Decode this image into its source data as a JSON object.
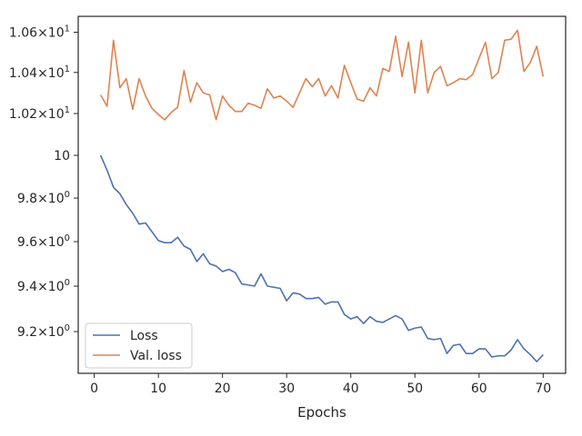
{
  "chart_data": {
    "type": "line",
    "title": "",
    "xlabel": "Epochs",
    "ylabel": "",
    "xlim": [
      -2.5,
      73.5
    ],
    "ylim": [
      9.02,
      10.68
    ],
    "yscale": "log",
    "grid": false,
    "legend": "lower-left",
    "x_ticks": [
      0,
      10,
      20,
      30,
      40,
      50,
      60,
      70
    ],
    "x_tick_labels": [
      "0",
      "10",
      "20",
      "30",
      "40",
      "50",
      "60",
      "70"
    ],
    "y_ticks": [
      9.2,
      9.4,
      9.6,
      9.8,
      10,
      10.2,
      10.4,
      10.6
    ],
    "y_tick_labels": [
      {
        "base": "9.2×10",
        "exp": "0"
      },
      {
        "base": "9.4×10",
        "exp": "0"
      },
      {
        "base": "9.6×10",
        "exp": "0"
      },
      {
        "base": "9.8×10",
        "exp": "0"
      },
      {
        "base": "10",
        "exp": ""
      },
      {
        "base": "1.02×10",
        "exp": "1"
      },
      {
        "base": "1.04×10",
        "exp": "1"
      },
      {
        "base": "1.06×10",
        "exp": "1"
      }
    ],
    "x": [
      1,
      2,
      3,
      4,
      5,
      6,
      7,
      8,
      9,
      10,
      11,
      12,
      13,
      14,
      15,
      16,
      17,
      18,
      19,
      20,
      21,
      22,
      23,
      24,
      25,
      26,
      27,
      28,
      29,
      30,
      31,
      32,
      33,
      34,
      35,
      36,
      37,
      38,
      39,
      40,
      41,
      42,
      43,
      44,
      45,
      46,
      47,
      48,
      49,
      50,
      51,
      52,
      53,
      54,
      55,
      56,
      57,
      58,
      59,
      60,
      61,
      62,
      63,
      64,
      65,
      66,
      67,
      68,
      69,
      70
    ],
    "series": [
      {
        "name": "Loss",
        "color": "#4c72b0",
        "values": [
          10.0,
          9.93,
          9.85,
          9.82,
          9.77,
          9.73,
          9.68,
          9.685,
          9.645,
          9.605,
          9.595,
          9.595,
          9.62,
          9.58,
          9.565,
          9.51,
          9.545,
          9.5,
          9.49,
          9.465,
          9.475,
          9.46,
          9.41,
          9.405,
          9.4,
          9.455,
          9.4,
          9.395,
          9.39,
          9.335,
          9.37,
          9.365,
          9.345,
          9.345,
          9.35,
          9.32,
          9.33,
          9.33,
          9.275,
          9.255,
          9.265,
          9.235,
          9.265,
          9.245,
          9.24,
          9.255,
          9.27,
          9.255,
          9.205,
          9.215,
          9.22,
          9.17,
          9.165,
          9.17,
          9.105,
          9.14,
          9.145,
          9.105,
          9.105,
          9.125,
          9.125,
          9.09,
          9.095,
          9.095,
          9.12,
          9.165,
          9.125,
          9.1,
          9.07,
          9.1
        ]
      },
      {
        "name": "Val. loss",
        "color": "#dd8452",
        "values": [
          10.29,
          10.235,
          10.56,
          10.325,
          10.37,
          10.22,
          10.37,
          10.285,
          10.225,
          10.195,
          10.17,
          10.205,
          10.23,
          10.41,
          10.255,
          10.35,
          10.3,
          10.29,
          10.17,
          10.285,
          10.24,
          10.21,
          10.21,
          10.25,
          10.24,
          10.225,
          10.32,
          10.275,
          10.285,
          10.26,
          10.23,
          10.3,
          10.37,
          10.33,
          10.37,
          10.285,
          10.335,
          10.275,
          10.435,
          10.35,
          10.27,
          10.26,
          10.325,
          10.285,
          10.42,
          10.405,
          10.58,
          10.38,
          10.55,
          10.3,
          10.56,
          10.3,
          10.4,
          10.43,
          10.335,
          10.35,
          10.37,
          10.365,
          10.39,
          10.47,
          10.55,
          10.37,
          10.4,
          10.56,
          10.565,
          10.61,
          10.405,
          10.45,
          10.53,
          10.38
        ]
      }
    ]
  }
}
